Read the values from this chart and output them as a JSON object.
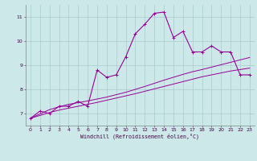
{
  "xlabel": "Windchill (Refroidissement éolien,°C)",
  "bg_color": "#cce8e8",
  "grid_color": "#aacccc",
  "line_color": "#990099",
  "x_hours": [
    0,
    1,
    2,
    3,
    4,
    5,
    6,
    7,
    8,
    9,
    10,
    11,
    12,
    13,
    14,
    15,
    16,
    17,
    18,
    19,
    20,
    21,
    22,
    23
  ],
  "main_line": [
    6.8,
    7.1,
    7.0,
    7.3,
    7.3,
    7.5,
    7.3,
    8.8,
    8.5,
    8.6,
    9.35,
    10.3,
    10.7,
    11.15,
    11.2,
    10.15,
    10.4,
    9.55,
    9.55,
    9.8,
    9.55,
    9.55,
    8.6,
    8.6
  ],
  "trend1": [
    6.8,
    6.98,
    7.16,
    7.28,
    7.38,
    7.45,
    7.52,
    7.6,
    7.68,
    7.78,
    7.88,
    8.0,
    8.12,
    8.25,
    8.38,
    8.5,
    8.62,
    8.73,
    8.82,
    8.92,
    9.02,
    9.12,
    9.22,
    9.32
  ],
  "trend2": [
    6.8,
    6.92,
    7.04,
    7.14,
    7.22,
    7.3,
    7.38,
    7.46,
    7.55,
    7.64,
    7.73,
    7.82,
    7.92,
    8.02,
    8.12,
    8.22,
    8.32,
    8.42,
    8.52,
    8.6,
    8.68,
    8.76,
    8.82,
    8.88
  ],
  "ylim": [
    6.5,
    11.5
  ],
  "yticks": [
    7,
    8,
    9,
    10,
    11
  ],
  "xticks": [
    0,
    1,
    2,
    3,
    4,
    5,
    6,
    7,
    8,
    9,
    10,
    11,
    12,
    13,
    14,
    15,
    16,
    17,
    18,
    19,
    20,
    21,
    22,
    23
  ]
}
